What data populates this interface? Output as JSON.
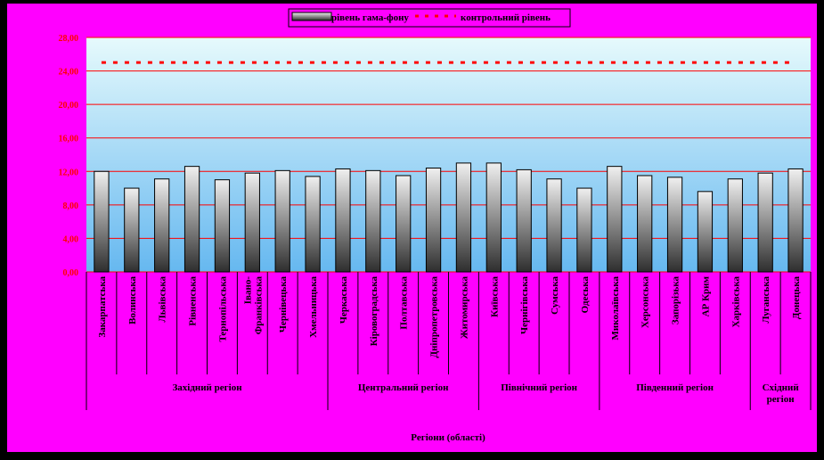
{
  "colors": {
    "background": "#ff00ff",
    "frame": "#000000",
    "plot_top": "#e6fafc",
    "plot_bottom": "#66b8f0",
    "gridline": "#ff0000",
    "bar_light": "#f0f0f0",
    "bar_dark": "#2e2e2e",
    "control_line": "#ff0000",
    "tick_label": "#ff0000",
    "text": "#000000"
  },
  "chart_data": {
    "type": "bar",
    "title": "",
    "xlabel": "Регіони (області)",
    "ylabel": "",
    "ylim": [
      0,
      28
    ],
    "yticks": [
      "0,00",
      "4,00",
      "8,00",
      "12,00",
      "16,00",
      "20,00",
      "24,00",
      "28,00"
    ],
    "grid": true,
    "legend_position": "top-center",
    "categories": [
      "Закарпатська",
      "Волинська",
      "Львівська",
      "Рівненська",
      "Тернопільська",
      "Івано-Франківська",
      "Чернівецька",
      "Хмельницька",
      "Черкаська",
      "Кіровоградська",
      "Полтавська",
      "Дніпропетровська",
      "Житомирська",
      "Київська",
      "Чернігівська",
      "Сумська",
      "Одеська",
      "Миколаївська",
      "Херсонська",
      "Запорізька",
      "АР Крим",
      "Харківська",
      "Луганська",
      "Донецька"
    ],
    "series": [
      {
        "name": "рівень гама-фону",
        "type": "bar",
        "values": [
          12.0,
          10.0,
          11.1,
          12.6,
          11.0,
          11.8,
          12.1,
          11.4,
          12.3,
          12.1,
          11.5,
          12.4,
          13.0,
          13.0,
          12.2,
          11.1,
          10.0,
          12.6,
          11.5,
          11.3,
          9.6,
          11.1,
          11.8,
          12.3
        ]
      },
      {
        "name": "контрольний рівень",
        "type": "line",
        "style": "dashed",
        "values": [
          25.0,
          25.0,
          25.0,
          25.0,
          25.0,
          25.0,
          25.0,
          25.0,
          25.0,
          25.0,
          25.0,
          25.0,
          25.0,
          25.0,
          25.0,
          25.0,
          25.0,
          25.0,
          25.0,
          25.0,
          25.0,
          25.0,
          25.0,
          25.0
        ]
      }
    ],
    "groups": [
      {
        "label": "Західний регіон",
        "start": 0,
        "end": 7
      },
      {
        "label": "Центральний регіон",
        "start": 8,
        "end": 12
      },
      {
        "label": "Північний регіон",
        "start": 13,
        "end": 16
      },
      {
        "label": "Південний регіон",
        "start": 17,
        "end": 21
      },
      {
        "label": "Східний регіон",
        "start": 22,
        "end": 23
      }
    ]
  }
}
